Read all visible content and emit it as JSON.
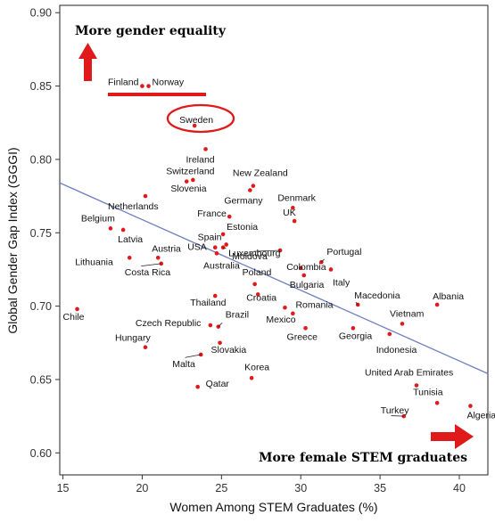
{
  "chart_data": {
    "type": "scatter",
    "title": "",
    "xlabel": "Women Among STEM Graduates (%)",
    "ylabel": "Global Gender Gap Index (GGGI)",
    "xlim": [
      14.8,
      41.8
    ],
    "ylim": [
      0.585,
      0.905
    ],
    "xticks": [
      15,
      20,
      25,
      30,
      35,
      40
    ],
    "yticks": [
      0.6,
      0.65,
      0.7,
      0.75,
      0.8,
      0.85,
      0.9
    ],
    "grid": false,
    "trendline": {
      "x": [
        14.8,
        41.8
      ],
      "y": [
        0.784,
        0.654
      ]
    },
    "annotations": {
      "top_left": "More gender equality",
      "bottom_right": "More female STEM graduates"
    },
    "points": [
      {
        "label": "Finland",
        "x": 20.0,
        "y": 0.85
      },
      {
        "label": "Norway",
        "x": 20.4,
        "y": 0.85
      },
      {
        "label": "Sweden",
        "x": 23.3,
        "y": 0.823
      },
      {
        "label": "Ireland",
        "x": 24.0,
        "y": 0.807
      },
      {
        "label": "Switzerland",
        "x": 22.8,
        "y": 0.785
      },
      {
        "label": "Slovenia",
        "x": 23.2,
        "y": 0.786
      },
      {
        "label": "New Zealand",
        "x": 27.0,
        "y": 0.782
      },
      {
        "label": "Germany",
        "x": 26.8,
        "y": 0.779
      },
      {
        "label": "Netherlands",
        "x": 20.2,
        "y": 0.775
      },
      {
        "label": "Denmark",
        "x": 29.5,
        "y": 0.767
      },
      {
        "label": "France",
        "x": 25.5,
        "y": 0.761
      },
      {
        "label": "UK",
        "x": 29.6,
        "y": 0.758
      },
      {
        "label": "Estonia",
        "x": 25.1,
        "y": 0.749
      },
      {
        "label": "Belgium",
        "x": 18.0,
        "y": 0.753
      },
      {
        "label": "Latvia",
        "x": 18.8,
        "y": 0.752
      },
      {
        "label": "Spain",
        "x": 25.3,
        "y": 0.742
      },
      {
        "label": "Luxembourg",
        "x": 25.1,
        "y": 0.74
      },
      {
        "label": "USA",
        "x": 24.6,
        "y": 0.74
      },
      {
        "label": "Austria",
        "x": 21.0,
        "y": 0.733
      },
      {
        "label": "Lithuania",
        "x": 19.2,
        "y": 0.733
      },
      {
        "label": "Moldova",
        "x": 28.7,
        "y": 0.738
      },
      {
        "label": "Portugal",
        "x": 31.3,
        "y": 0.73
      },
      {
        "label": "Colombia",
        "x": 30.0,
        "y": 0.726
      },
      {
        "label": "Costa Rica",
        "x": 21.2,
        "y": 0.729
      },
      {
        "label": "Australia",
        "x": 24.7,
        "y": 0.736
      },
      {
        "label": "Italy",
        "x": 31.9,
        "y": 0.725
      },
      {
        "label": "Bulgaria",
        "x": 30.2,
        "y": 0.721
      },
      {
        "label": "Poland",
        "x": 27.1,
        "y": 0.715
      },
      {
        "label": "Macedonia",
        "x": 33.6,
        "y": 0.701
      },
      {
        "label": "Albania",
        "x": 38.6,
        "y": 0.701
      },
      {
        "label": "Croatia",
        "x": 27.3,
        "y": 0.708
      },
      {
        "label": "Thailand",
        "x": 24.6,
        "y": 0.707
      },
      {
        "label": "Chile",
        "x": 15.9,
        "y": 0.698
      },
      {
        "label": "Romania",
        "x": 29.0,
        "y": 0.699
      },
      {
        "label": "Mexico",
        "x": 29.5,
        "y": 0.695
      },
      {
        "label": "Vietnam",
        "x": 36.4,
        "y": 0.688
      },
      {
        "label": "Czech Republic",
        "x": 24.3,
        "y": 0.687
      },
      {
        "label": "Greece",
        "x": 30.3,
        "y": 0.685
      },
      {
        "label": "Georgia",
        "x": 33.3,
        "y": 0.685
      },
      {
        "label": "Brazil",
        "x": 24.8,
        "y": 0.686
      },
      {
        "label": "Indonesia",
        "x": 35.6,
        "y": 0.681
      },
      {
        "label": "Hungary",
        "x": 20.2,
        "y": 0.672
      },
      {
        "label": "Slovakia",
        "x": 24.9,
        "y": 0.675
      },
      {
        "label": "Malta",
        "x": 23.7,
        "y": 0.667
      },
      {
        "label": "United Arab Emirates",
        "x": 37.3,
        "y": 0.646
      },
      {
        "label": "Korea",
        "x": 26.9,
        "y": 0.651
      },
      {
        "label": "Qatar",
        "x": 23.5,
        "y": 0.645
      },
      {
        "label": "Tunisia",
        "x": 38.6,
        "y": 0.634
      },
      {
        "label": "Algeria",
        "x": 40.7,
        "y": 0.632
      },
      {
        "label": "Turkey",
        "x": 36.5,
        "y": 0.625
      }
    ],
    "colors": {
      "points": "#e0191b",
      "trendline": "#6e7fbf",
      "arrows": "#e0191b"
    }
  }
}
